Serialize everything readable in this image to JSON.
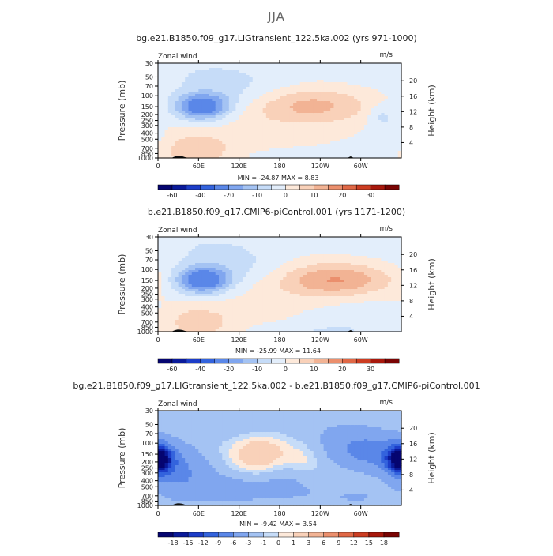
{
  "figure_title": "JJA",
  "chart_data": [
    {
      "type": "heatmap",
      "title": "bg.e21.B1850.f09_g17.LIGtransient_122.5ka.002 (yrs 971-1000)",
      "variable": "Zonal wind",
      "units": "m/s",
      "ylabel": "Pressure (mb)",
      "ylabel_right": "Height (km)",
      "x_tick_labels": [
        "0",
        "60E",
        "120E",
        "180",
        "120W",
        "60W"
      ],
      "y_tick_labels": [
        "30",
        "50",
        "70",
        "100",
        "150",
        "200",
        "250",
        "300",
        "400",
        "500",
        "700",
        "850",
        "1000"
      ],
      "height_tick_labels": [
        "4",
        "8",
        "12",
        "16",
        "20"
      ],
      "stats": "MIN = -24.87   MAX =   8.83",
      "colorbar_labels": [
        "-60",
        "-40",
        "-20",
        "-10",
        "0",
        "10",
        "20",
        "30"
      ],
      "features": [
        {
          "lon": 65,
          "p": 150,
          "value": -25,
          "sx": 28,
          "sp": 0.34
        },
        {
          "lon": 120,
          "p": 95,
          "value": -5,
          "sx": 55,
          "sp": 0.5
        },
        {
          "lon": 220,
          "p": 140,
          "value": 8.5,
          "sx": 60,
          "sp": 0.45
        },
        {
          "lon": 230,
          "p": 155,
          "value": 5,
          "sx": 95,
          "sp": 0.6
        },
        {
          "lon": 55,
          "p": 750,
          "value": 9,
          "sx": 35,
          "sp": 0.45
        },
        {
          "lon": 130,
          "p": 800,
          "value": 3,
          "sx": 90,
          "sp": 0.9
        },
        {
          "lon": 330,
          "p": 200,
          "value": -6,
          "sx": 14,
          "sp": 0.3
        },
        {
          "lon": 60,
          "p": 40,
          "value": -3,
          "sx": 110,
          "sp": 0.6
        },
        {
          "lon": 340,
          "p": 450,
          "value": -4,
          "sx": 20,
          "sp": 0.6
        },
        {
          "lon": 200,
          "p": 950,
          "value": -4,
          "sx": 60,
          "sp": 0.2
        }
      ]
    },
    {
      "type": "heatmap",
      "title": "b.e21.B1850.f09_g17.CMIP6-piControl.001 (yrs 1171-1200)",
      "variable": "Zonal wind",
      "units": "m/s",
      "ylabel": "Pressure (mb)",
      "ylabel_right": "Height (km)",
      "x_tick_labels": [
        "0",
        "60E",
        "120E",
        "180",
        "120W",
        "60W"
      ],
      "y_tick_labels": [
        "30",
        "50",
        "70",
        "100",
        "150",
        "200",
        "250",
        "300",
        "400",
        "500",
        "700",
        "850",
        "1000"
      ],
      "height_tick_labels": [
        "4",
        "8",
        "12",
        "16",
        "20"
      ],
      "stats": "MIN = -25.99   MAX =  11.64",
      "colorbar_labels": [
        "-60",
        "-40",
        "-20",
        "-10",
        "0",
        "10",
        "20",
        "30"
      ],
      "features": [
        {
          "lon": 65,
          "p": 150,
          "value": -26,
          "sx": 28,
          "sp": 0.34
        },
        {
          "lon": 120,
          "p": 100,
          "value": -6,
          "sx": 55,
          "sp": 0.5
        },
        {
          "lon": 265,
          "p": 150,
          "value": 11.5,
          "sx": 55,
          "sp": 0.4
        },
        {
          "lon": 240,
          "p": 140,
          "value": 6,
          "sx": 95,
          "sp": 0.65
        },
        {
          "lon": 55,
          "p": 720,
          "value": 8,
          "sx": 35,
          "sp": 0.45
        },
        {
          "lon": 120,
          "p": 800,
          "value": 3,
          "sx": 90,
          "sp": 0.9
        },
        {
          "lon": 60,
          "p": 40,
          "value": -3,
          "sx": 110,
          "sp": 0.6
        },
        {
          "lon": 300,
          "p": 700,
          "value": -3,
          "sx": 60,
          "sp": 0.8
        },
        {
          "lon": 200,
          "p": 950,
          "value": -4,
          "sx": 60,
          "sp": 0.2
        }
      ]
    },
    {
      "type": "heatmap",
      "title": "bg.e21.B1850.f09_g17.LIGtransient_122.5ka.002 - b.e21.B1850.f09_g17.CMIP6-piControl.001",
      "variable": "Zonal wind",
      "units": "m/s",
      "ylabel": "Pressure (mb)",
      "ylabel_right": "Height (km)",
      "x_tick_labels": [
        "0",
        "60E",
        "120E",
        "180",
        "120W",
        "60W"
      ],
      "y_tick_labels": [
        "30",
        "50",
        "70",
        "100",
        "150",
        "200",
        "250",
        "300",
        "400",
        "500",
        "700",
        "850",
        "1000"
      ],
      "height_tick_labels": [
        "4",
        "8",
        "12",
        "16",
        "20"
      ],
      "stats": "MIN =  -9.42   MAX =   3.54",
      "colorbar_labels": [
        "-18",
        "-15",
        "-12",
        "-9",
        "-6",
        "-3",
        "-1",
        "0",
        "1",
        "3",
        "6",
        "9",
        "12",
        "15",
        "18"
      ],
      "features": [
        {
          "lon": 0,
          "p": 180,
          "value": -9.4,
          "sx": 14,
          "sp": 0.35
        },
        {
          "lon": 360,
          "p": 180,
          "value": -9.4,
          "sx": 14,
          "sp": 0.35
        },
        {
          "lon": 30,
          "p": 250,
          "value": -5,
          "sx": 35,
          "sp": 0.6
        },
        {
          "lon": 150,
          "p": 150,
          "value": 3.5,
          "sx": 30,
          "sp": 0.55
        },
        {
          "lon": 215,
          "p": 200,
          "value": 2,
          "sx": 20,
          "sp": 0.5
        },
        {
          "lon": 320,
          "p": 150,
          "value": -5,
          "sx": 40,
          "sp": 0.5
        },
        {
          "lon": 280,
          "p": 90,
          "value": -3,
          "sx": 45,
          "sp": 0.6
        },
        {
          "lon": 110,
          "p": 550,
          "value": -3.5,
          "sx": 70,
          "sp": 0.5
        },
        {
          "lon": 110,
          "p": 40,
          "value": -2.5,
          "sx": 80,
          "sp": 0.6
        },
        {
          "lon": 300,
          "p": 750,
          "value": -2.5,
          "sx": 60,
          "sp": 0.4
        },
        {
          "lon": 345,
          "p": 800,
          "value": 1.5,
          "sx": 20,
          "sp": 0.4
        },
        {
          "lon": 200,
          "p": 350,
          "value": -2.0,
          "sx": 30,
          "sp": 0.5
        }
      ]
    }
  ],
  "colors": {
    "diverging": [
      "#050570",
      "#0a1a9a",
      "#1c3dc8",
      "#3363dd",
      "#5a87e8",
      "#80a6ef",
      "#a4c3f3",
      "#c6dcf8",
      "#e3eefb",
      "#fde9da",
      "#f9d1b9",
      "#f2b394",
      "#eb8f6d",
      "#e06846",
      "#cc3d22",
      "#a8180c",
      "#7a0403"
    ],
    "terrain": "#111111"
  }
}
